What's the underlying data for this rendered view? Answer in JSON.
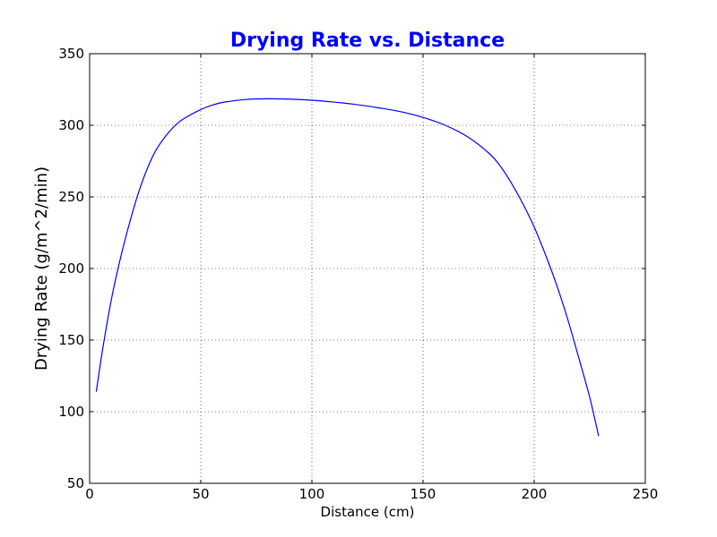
{
  "chart_data": {
    "type": "line",
    "title": "Drying Rate vs. Distance",
    "xlabel": "Distance (cm)",
    "ylabel": "Drying Rate (g/m^2/min)",
    "xlim": [
      0,
      250
    ],
    "ylim": [
      50,
      350
    ],
    "xticks": [
      "0",
      "50",
      "100",
      "150",
      "200",
      "250"
    ],
    "yticks": [
      "50",
      "100",
      "150",
      "200",
      "250",
      "300",
      "350"
    ],
    "grid": true,
    "series": [
      {
        "color": "#0000ff",
        "x": [
          3,
          6,
          10,
          14,
          18,
          22,
          26,
          30,
          35,
          40,
          45,
          50,
          55,
          60,
          70,
          80,
          90,
          100,
          110,
          120,
          130,
          140,
          150,
          160,
          170,
          180,
          185,
          190,
          195,
          200,
          205,
          210,
          215,
          220,
          225,
          229
        ],
        "y": [
          114,
          145,
          180,
          208,
          232,
          253,
          270,
          283,
          294,
          302,
          307,
          311,
          314,
          316,
          318,
          318.5,
          318.3,
          317.5,
          316.2,
          314.5,
          312.2,
          309.5,
          305.5,
          300,
          292,
          280,
          271,
          259,
          245,
          229,
          210,
          189,
          165,
          138,
          110,
          83
        ]
      }
    ]
  }
}
